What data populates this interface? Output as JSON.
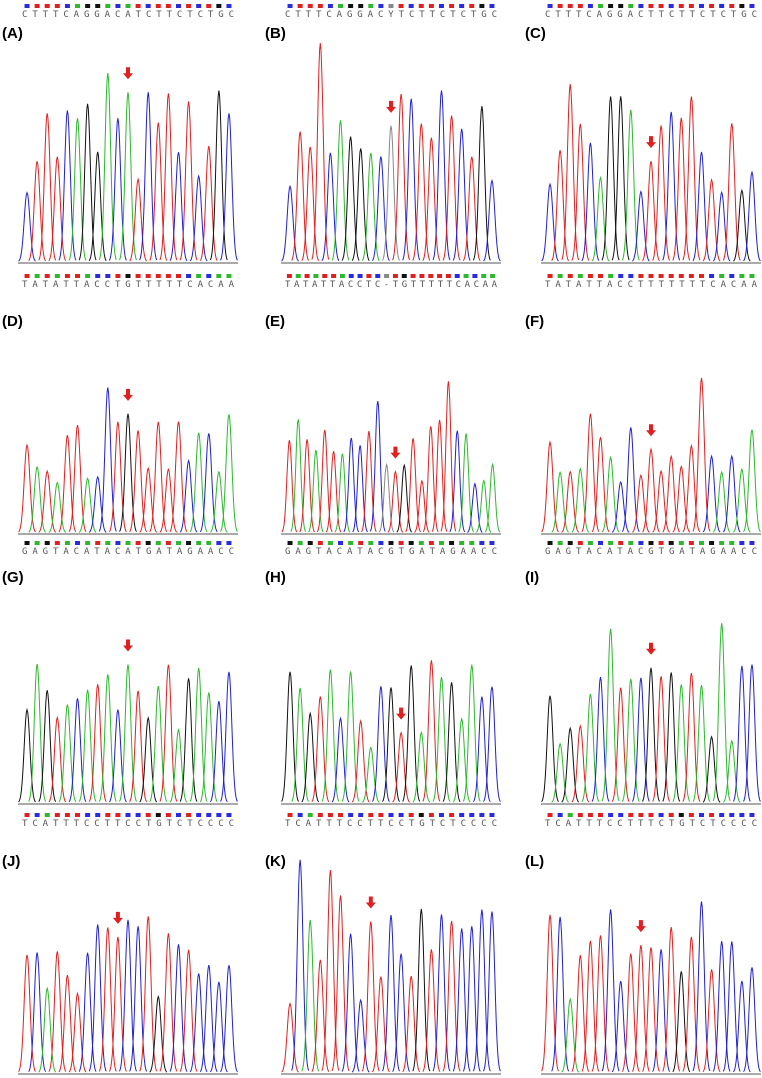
{
  "panels": [
    {
      "label": "(A)",
      "sequence": "CTTTCAGGACATCTTCTCTGC"
    },
    {
      "label": "(B)",
      "sequence": "CTTTCAGGACYTCTTCTCTGC"
    },
    {
      "label": "(C)",
      "sequence": "CTTTCAGGACTTCTTCTCTGC"
    },
    {
      "label": "(D)",
      "sequence": "TATATTACCTGTTTTTCACAA"
    },
    {
      "label": "(E)",
      "sequence": "TATATTACCTC-TGTTTTTCACAA"
    },
    {
      "label": "(F)",
      "sequence": "TATATTACCTTTTTTTCACAA"
    },
    {
      "label": "(G)",
      "sequence": "GAGTACATACATGATAGAACC"
    },
    {
      "label": "(H)",
      "sequence": "GAGTACATACGTGATAGAACC"
    },
    {
      "label": "(I)",
      "sequence": "GAGTACATACGTGATAGAACC"
    },
    {
      "label": "(J)",
      "sequence": "TCATTTCCTTCCTGTCTCCCC"
    },
    {
      "label": "(K)",
      "sequence": "TCATTTCCTTCCTGTCTCCCC"
    },
    {
      "label": "(L)",
      "sequence": "TCATTTCCTTTCTGTCTCCCC"
    }
  ]
}
